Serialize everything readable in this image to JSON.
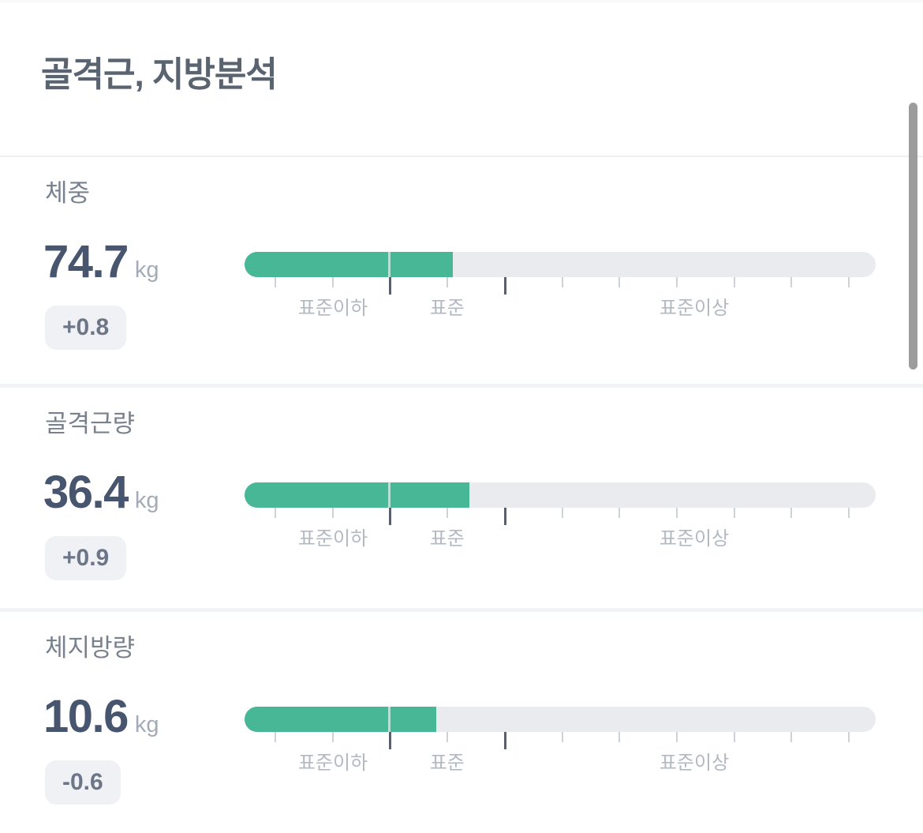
{
  "page": {
    "title": "골격근, 지방분석"
  },
  "gauge": {
    "zone_labels": [
      {
        "text": "표준이하",
        "center_percent": 14.0
      },
      {
        "text": "표준",
        "center_percent": 32.1
      },
      {
        "text": "표준이상",
        "center_percent": 71.25
      }
    ],
    "tick_count": 11,
    "tick_first_percent": 4.75,
    "tick_step_percent": 9.0875,
    "boundary_tick_indexes": [
      2,
      4
    ],
    "standard_start_percent": 22.75,
    "colors": {
      "fill": "#47b795",
      "track": "#e9ebee"
    }
  },
  "sections": [
    {
      "label": "체중",
      "value": "74.7",
      "unit": "kg",
      "delta": "+0.8",
      "fill_percent": 33.0
    },
    {
      "label": "골격근량",
      "value": "36.4",
      "unit": "kg",
      "delta": "+0.9",
      "fill_percent": 35.6
    },
    {
      "label": "체지방량",
      "value": "10.6",
      "unit": "kg",
      "delta": "-0.6",
      "fill_percent": 30.4
    }
  ]
}
